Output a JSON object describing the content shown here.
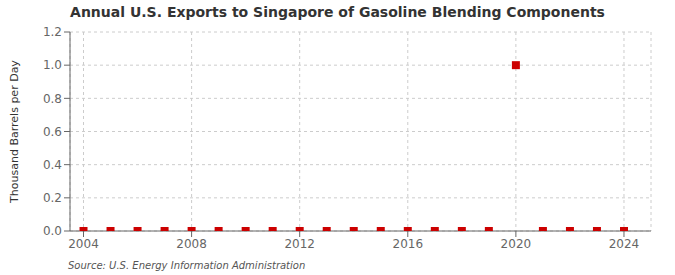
{
  "chart_data": {
    "type": "scatter",
    "title": "Annual U.S. Exports to Singapore of Gasoline Blending Components",
    "ylabel": "Thousand Barrels per Day",
    "source": "Source: U.S. Energy Information Administration",
    "x": [
      2004,
      2005,
      2006,
      2007,
      2008,
      2009,
      2010,
      2011,
      2012,
      2013,
      2014,
      2015,
      2016,
      2017,
      2018,
      2019,
      2020,
      2021,
      2022,
      2023,
      2024
    ],
    "values": [
      0,
      0,
      0,
      0,
      0,
      0,
      0,
      0,
      0,
      0,
      0,
      0,
      0,
      0,
      0,
      0,
      1.0,
      0,
      0,
      0,
      0
    ],
    "color": "#cc0000",
    "marker": "square",
    "xlim": [
      2003.5,
      2025
    ],
    "xticks": [
      2004,
      2008,
      2012,
      2016,
      2020,
      2024
    ],
    "ylim": [
      0.0,
      1.2
    ],
    "yticks": [
      {
        "value": 0.0,
        "label": "0.0"
      },
      0.2,
      0.4,
      0.6,
      0.8,
      {
        "value": 1.0,
        "label": "1.0"
      },
      1.2
    ],
    "grid": true
  }
}
